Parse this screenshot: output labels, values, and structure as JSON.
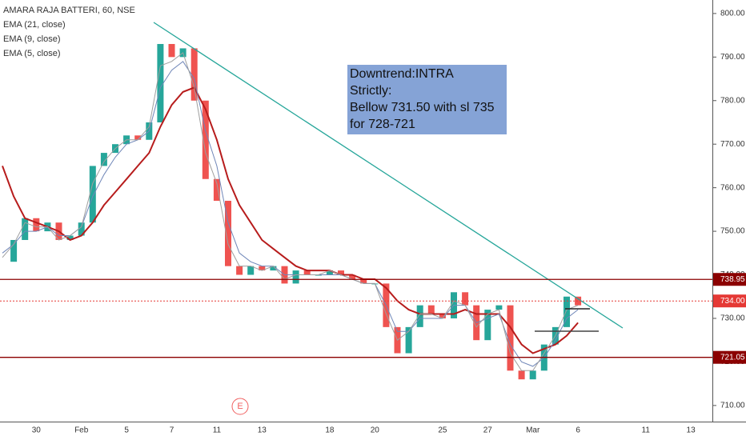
{
  "chart_data": {
    "type": "candle-line",
    "title": "AMARA RAJA BATTERI, 60, NSE",
    "categories": [
      null,
      null,
      null,
      "30",
      null,
      null,
      null,
      "Feb",
      null,
      null,
      null,
      "5",
      null,
      null,
      null,
      "7",
      null,
      null,
      null,
      "11",
      null,
      null,
      null,
      "13",
      null,
      null,
      null,
      null,
      null,
      "18",
      null,
      null,
      null,
      "20",
      null,
      null,
      null,
      null,
      null,
      "25",
      null,
      null,
      null,
      "27",
      null,
      null,
      null,
      "Mar",
      null,
      null,
      null,
      "6",
      null,
      null,
      null,
      null,
      null,
      "11",
      null,
      null,
      null,
      "13",
      null
    ],
    "values": [
      743,
      748,
      753,
      750,
      752,
      748,
      749,
      752,
      765,
      768,
      770,
      772,
      771,
      775,
      793,
      790,
      792,
      780,
      762,
      757,
      742,
      740,
      742,
      741,
      742,
      738,
      741,
      740,
      740,
      741,
      740,
      739,
      738,
      738,
      728,
      722,
      728,
      733,
      731,
      730,
      736,
      733,
      725,
      732,
      733,
      718,
      716,
      718,
      724,
      728,
      735,
      733,
      null,
      null,
      null,
      null,
      null,
      null,
      null,
      null,
      null,
      null,
      null
    ],
    "up_color": "#26a69a",
    "down_color": "#ef5350",
    "series": [
      {
        "name": "EMA (21, close)",
        "color": "#b71c1c",
        "values": [
          765,
          758,
          753,
          752,
          751,
          750,
          748,
          749,
          752,
          756,
          759,
          762,
          765,
          768,
          774,
          779,
          782,
          783,
          778,
          771,
          762,
          756,
          752,
          748,
          746,
          744,
          742,
          741,
          741,
          741,
          740,
          740,
          739,
          739,
          737,
          734,
          732,
          731,
          731,
          731,
          731,
          732,
          731,
          731,
          731,
          728,
          724,
          722,
          723,
          724,
          726,
          729,
          null,
          null,
          null,
          null,
          null,
          null,
          null,
          null,
          null,
          null,
          null
        ]
      },
      {
        "name": "EMA (9, close)",
        "color": "#6f86b8",
        "values": [
          745,
          747,
          750,
          750,
          751,
          749,
          749,
          751,
          758,
          763,
          767,
          770,
          771,
          773,
          783,
          787,
          789,
          785,
          773,
          765,
          752,
          745,
          743,
          742,
          742,
          740,
          740,
          740,
          740,
          740,
          740,
          739,
          738,
          738,
          733,
          727,
          727,
          730,
          730,
          730,
          733,
          733,
          729,
          730,
          731,
          724,
          720,
          719,
          721,
          725,
          730,
          732,
          null,
          null,
          null,
          null,
          null,
          null,
          null,
          null,
          null,
          null,
          null
        ]
      },
      {
        "name": "EMA (5, close)",
        "color": "#9e9e9e",
        "values": [
          744,
          747,
          752,
          751,
          751,
          748,
          749,
          751,
          761,
          766,
          769,
          771,
          771,
          774,
          788,
          789,
          791,
          783,
          768,
          761,
          747,
          742,
          742,
          741,
          742,
          739,
          740,
          740,
          740,
          741,
          740,
          739,
          738,
          738,
          731,
          725,
          727,
          731,
          731,
          730,
          734,
          733,
          728,
          731,
          732,
          722,
          718,
          718,
          722,
          726,
          732,
          733,
          null,
          null,
          null,
          null,
          null,
          null,
          null,
          null,
          null,
          null,
          null
        ]
      }
    ],
    "ylim": [
      706.3,
      803.1
    ],
    "yticks": [
      {
        "value": 710,
        "label": "710.00"
      },
      {
        "value": 720,
        "label": "720.00"
      },
      {
        "value": 730,
        "label": "730.00"
      },
      {
        "value": 740,
        "label": "740.00"
      },
      {
        "value": 750,
        "label": "750.00"
      },
      {
        "value": 760,
        "label": "760.00"
      },
      {
        "value": 770,
        "label": "770.00"
      },
      {
        "value": 780,
        "label": "780.00"
      },
      {
        "value": 790,
        "label": "790.00"
      },
      {
        "value": 800,
        "label": "800.00"
      }
    ],
    "levels": [
      {
        "value": 738.95,
        "label": "738.95",
        "color": "#8b0000",
        "style": "solid"
      },
      {
        "value": 734,
        "label": "734.00",
        "color": "#e53935",
        "style": "dotted"
      },
      {
        "value": 721.05,
        "label": "721.05",
        "color": "#8b0000",
        "style": "solid"
      }
    ],
    "annotation": {
      "lines": [
        "Downtrend:INTRA",
        "Strictly:",
        "Bellow 731.50 with sl 735",
        "for 728-721"
      ]
    },
    "event_marker": "E"
  }
}
